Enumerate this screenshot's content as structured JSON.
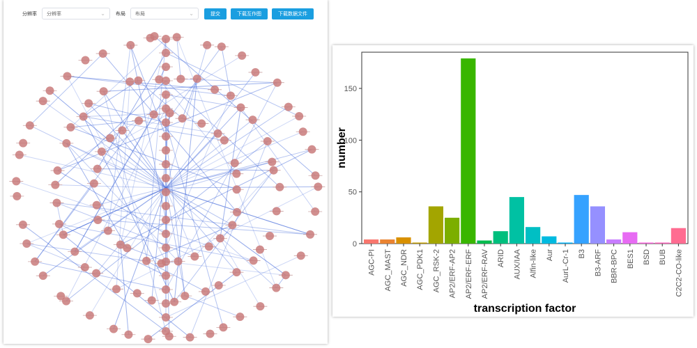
{
  "toolbar": {
    "resolution_label": "分辨率",
    "resolution_value": "分辨率",
    "layout_label": "布局",
    "layout_value": "布局",
    "submit": "提交",
    "download_graph": "下载互作图",
    "download_data": "下载数据文件"
  },
  "colors": {
    "node": "#c97b7b",
    "edge": "#4a6fdc",
    "button": "#1a9ee0"
  },
  "chart_data": {
    "type": "bar",
    "xlabel": "transcription factor",
    "ylabel": "number",
    "ylim": [
      0,
      185
    ],
    "yticks": [
      0,
      50,
      100,
      150
    ],
    "grid": false,
    "categories": [
      "AGC-PI",
      "AGC_MAST",
      "AGC_NDR",
      "AGC_PDK1",
      "AGC_RSK-2",
      "AP2/ERF-AP2",
      "AP2/ERF-ERF",
      "AP2/ERF-RAV",
      "ARID",
      "AUX/IAA",
      "Alfin-like",
      "Aur",
      "AurL-Cr-1",
      "B3",
      "B3-ARF",
      "BBR-BPC",
      "BES1",
      "BSD",
      "BUB",
      "C2C2-CO-like"
    ],
    "values": [
      4,
      4,
      6,
      1,
      36,
      25,
      179,
      3,
      12,
      45,
      16,
      7,
      1,
      47,
      36,
      4,
      11,
      1,
      1,
      15
    ],
    "colors": [
      "#f8766d",
      "#ea8331",
      "#d89000",
      "#c09b00",
      "#a3a500",
      "#7cae00",
      "#39b600",
      "#00bb4e",
      "#00bf7d",
      "#00c1a3",
      "#00bfc4",
      "#00bae0",
      "#00b0f6",
      "#35a2ff",
      "#9590ff",
      "#c77cff",
      "#e76bf3",
      "#fa62db",
      "#ff62bc",
      "#ff6c91"
    ]
  }
}
